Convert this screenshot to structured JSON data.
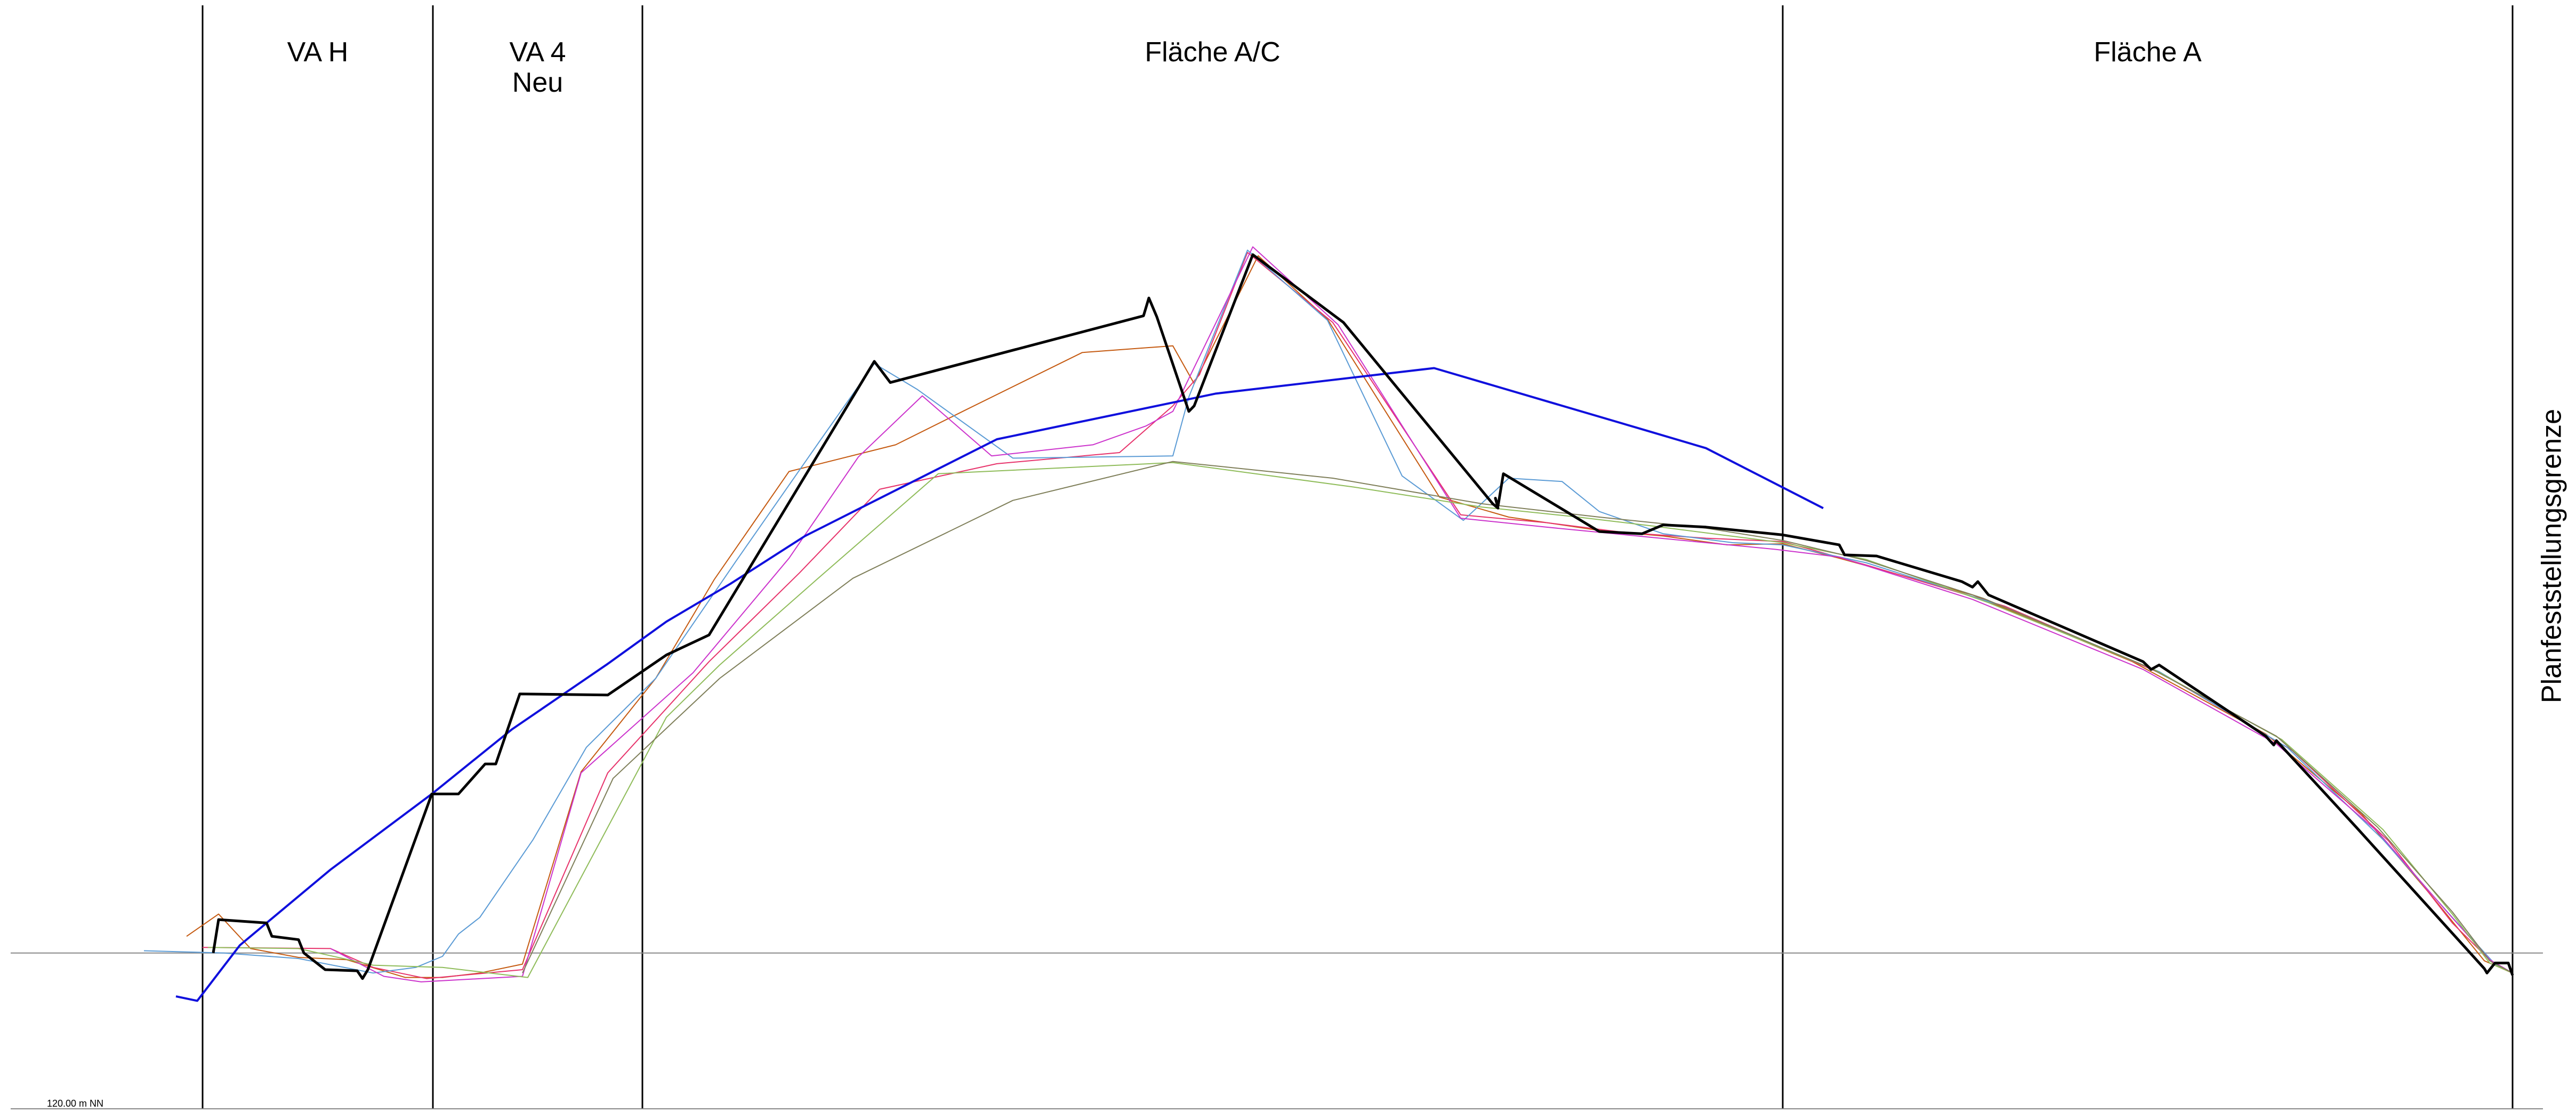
{
  "chart_data": {
    "type": "line",
    "grid": false,
    "xlim": [
      0,
      4832
    ],
    "ylim": [
      0,
      1
    ],
    "zones": [
      {
        "lines": [
          "VA H"
        ]
      },
      {
        "lines": [
          "VA 4",
          "Neu"
        ]
      },
      {
        "lines": [
          "Fläche A/C"
        ]
      },
      {
        "lines": [
          "Fläche A"
        ]
      }
    ],
    "side_label": "Planfeststellungsgrenze",
    "axis_label": "120.00 m NN",
    "reference_level": 0.143,
    "boundaries_x": [
      380,
      812,
      1205,
      3344,
      4713
    ],
    "series": [
      {
        "color": "#c55a11",
        "points": [
          [
            350,
            0.158
          ],
          [
            410,
            0.178
          ],
          [
            470,
            0.147
          ],
          [
            560,
            0.139
          ],
          [
            650,
            0.137
          ],
          [
            760,
            0.121
          ],
          [
            830,
            0.121
          ],
          [
            900,
            0.125
          ],
          [
            980,
            0.133
          ],
          [
            1090,
            0.306
          ],
          [
            1230,
            0.39
          ],
          [
            1340,
            0.479
          ],
          [
            1480,
            0.576
          ],
          [
            1680,
            0.6
          ],
          [
            1810,
            0.631
          ],
          [
            2030,
            0.683
          ],
          [
            2200,
            0.689
          ],
          [
            2240,
            0.655
          ],
          [
            2360,
            0.77
          ],
          [
            2490,
            0.713
          ],
          [
            2700,
            0.553
          ],
          [
            2830,
            0.535
          ],
          [
            3000,
            0.523
          ],
          [
            3120,
            0.518
          ],
          [
            3240,
            0.51
          ],
          [
            3344,
            0.511
          ],
          [
            3450,
            0.498
          ],
          [
            3700,
            0.465
          ],
          [
            4000,
            0.405
          ],
          [
            4250,
            0.34
          ],
          [
            4430,
            0.268
          ],
          [
            4560,
            0.195
          ],
          [
            4660,
            0.136
          ],
          [
            4713,
            0.125
          ]
        ]
      },
      {
        "color": "#e7336b",
        "points": [
          [
            380,
            0.148
          ],
          [
            620,
            0.147
          ],
          [
            700,
            0.13
          ],
          [
            800,
            0.12
          ],
          [
            980,
            0.128
          ],
          [
            1140,
            0.305
          ],
          [
            1330,
            0.405
          ],
          [
            1500,
            0.485
          ],
          [
            1650,
            0.56
          ],
          [
            1870,
            0.583
          ],
          [
            2100,
            0.593
          ],
          [
            2200,
            0.635
          ],
          [
            2250,
            0.663
          ],
          [
            2340,
            0.773
          ],
          [
            2500,
            0.71
          ],
          [
            2740,
            0.537
          ],
          [
            2900,
            0.53
          ],
          [
            3050,
            0.521
          ],
          [
            3200,
            0.516
          ],
          [
            3344,
            0.513
          ],
          [
            3500,
            0.492
          ],
          [
            3760,
            0.455
          ],
          [
            4060,
            0.393
          ],
          [
            4300,
            0.325
          ],
          [
            4480,
            0.244
          ],
          [
            4600,
            0.17
          ],
          [
            4680,
            0.132
          ],
          [
            4713,
            0.125
          ]
        ]
      },
      {
        "color": "#5b9bd5",
        "points": [
          [
            270,
            0.145
          ],
          [
            420,
            0.143
          ],
          [
            560,
            0.138
          ],
          [
            700,
            0.125
          ],
          [
            780,
            0.13
          ],
          [
            830,
            0.14
          ],
          [
            860,
            0.16
          ],
          [
            900,
            0.175
          ],
          [
            1000,
            0.245
          ],
          [
            1100,
            0.328
          ],
          [
            1230,
            0.39
          ],
          [
            1380,
            0.495
          ],
          [
            1540,
            0.605
          ],
          [
            1640,
            0.673
          ],
          [
            1720,
            0.65
          ],
          [
            1900,
            0.588
          ],
          [
            2200,
            0.59
          ],
          [
            2230,
            0.643
          ],
          [
            2340,
            0.775
          ],
          [
            2490,
            0.712
          ],
          [
            2630,
            0.572
          ],
          [
            2745,
            0.532
          ],
          [
            2830,
            0.57
          ],
          [
            2930,
            0.567
          ],
          [
            3000,
            0.54
          ],
          [
            3120,
            0.52
          ],
          [
            3250,
            0.512
          ],
          [
            3344,
            0.51
          ],
          [
            3500,
            0.494
          ],
          [
            3750,
            0.456
          ],
          [
            4050,
            0.396
          ],
          [
            4290,
            0.328
          ],
          [
            4470,
            0.245
          ],
          [
            4600,
            0.175
          ],
          [
            4680,
            0.133
          ],
          [
            4713,
            0.125
          ]
        ]
      },
      {
        "color": "#cc33cc",
        "points": [
          [
            620,
            0.147
          ],
          [
            720,
            0.122
          ],
          [
            790,
            0.117
          ],
          [
            980,
            0.122
          ],
          [
            1090,
            0.305
          ],
          [
            1300,
            0.395
          ],
          [
            1480,
            0.498
          ],
          [
            1610,
            0.589
          ],
          [
            1730,
            0.644
          ],
          [
            1860,
            0.59
          ],
          [
            2050,
            0.6
          ],
          [
            2150,
            0.617
          ],
          [
            2200,
            0.63
          ],
          [
            2350,
            0.778
          ],
          [
            2510,
            0.708
          ],
          [
            2740,
            0.534
          ],
          [
            2900,
            0.526
          ],
          [
            3050,
            0.519
          ],
          [
            3200,
            0.512
          ],
          [
            3330,
            0.506
          ],
          [
            3450,
            0.499
          ],
          [
            3700,
            0.461
          ],
          [
            4020,
            0.398
          ],
          [
            4270,
            0.331
          ],
          [
            4460,
            0.252
          ],
          [
            4590,
            0.18
          ],
          [
            4670,
            0.137
          ],
          [
            4713,
            0.125
          ]
        ]
      },
      {
        "color": "#8fbc5a",
        "points": [
          [
            390,
            0.148
          ],
          [
            560,
            0.147
          ],
          [
            700,
            0.132
          ],
          [
            830,
            0.13
          ],
          [
            990,
            0.121
          ],
          [
            1250,
            0.355
          ],
          [
            1350,
            0.402
          ],
          [
            1530,
            0.478
          ],
          [
            1760,
            0.574
          ],
          [
            2200,
            0.584
          ],
          [
            2540,
            0.562
          ],
          [
            2780,
            0.544
          ],
          [
            2960,
            0.535
          ],
          [
            3100,
            0.527
          ],
          [
            3344,
            0.512
          ],
          [
            3500,
            0.497
          ],
          [
            3730,
            0.458
          ],
          [
            4040,
            0.398
          ],
          [
            4280,
            0.335
          ],
          [
            4470,
            0.254
          ],
          [
            4600,
            0.178
          ],
          [
            4670,
            0.134
          ],
          [
            4713,
            0.125
          ]
        ]
      },
      {
        "color": "#7f7f5a",
        "points": [
          [
            980,
            0.125
          ],
          [
            1150,
            0.3
          ],
          [
            1350,
            0.39
          ],
          [
            1600,
            0.48
          ],
          [
            1900,
            0.55
          ],
          [
            2200,
            0.585
          ],
          [
            2500,
            0.57
          ],
          [
            2780,
            0.547
          ],
          [
            3000,
            0.535
          ],
          [
            3200,
            0.525
          ],
          [
            3344,
            0.514
          ],
          [
            3500,
            0.496
          ],
          [
            3720,
            0.462
          ],
          [
            4030,
            0.4
          ],
          [
            4270,
            0.338
          ],
          [
            4460,
            0.256
          ],
          [
            4600,
            0.18
          ],
          [
            4670,
            0.136
          ],
          [
            4713,
            0.125
          ]
        ]
      },
      {
        "color": "#1010dd",
        "width": 4,
        "points": [
          [
            330,
            0.104
          ],
          [
            370,
            0.1
          ],
          [
            450,
            0.15
          ],
          [
            620,
            0.218
          ],
          [
            810,
            0.286
          ],
          [
            960,
            0.344
          ],
          [
            1140,
            0.403
          ],
          [
            1250,
            0.441
          ],
          [
            1370,
            0.475
          ],
          [
            1510,
            0.518
          ],
          [
            1870,
            0.605
          ],
          [
            2280,
            0.646
          ],
          [
            2690,
            0.669
          ],
          [
            3080,
            0.614
          ],
          [
            3200,
            0.597
          ],
          [
            3420,
            0.543
          ]
        ]
      },
      {
        "color": "#000000",
        "width": 5,
        "points": [
          [
            400,
            0.143
          ],
          [
            410,
            0.173
          ],
          [
            500,
            0.17
          ],
          [
            510,
            0.158
          ],
          [
            560,
            0.155
          ],
          [
            570,
            0.143
          ],
          [
            610,
            0.128
          ],
          [
            670,
            0.127
          ],
          [
            680,
            0.12
          ],
          [
            690,
            0.128
          ],
          [
            810,
            0.286
          ],
          [
            860,
            0.286
          ],
          [
            910,
            0.313
          ],
          [
            930,
            0.313
          ],
          [
            975,
            0.376
          ],
          [
            1140,
            0.375
          ],
          [
            1250,
            0.411
          ],
          [
            1330,
            0.429
          ],
          [
            1640,
            0.675
          ],
          [
            1670,
            0.656
          ],
          [
            2145,
            0.716
          ],
          [
            2155,
            0.732
          ],
          [
            2170,
            0.715
          ],
          [
            2230,
            0.63
          ],
          [
            2240,
            0.635
          ],
          [
            2350,
            0.771
          ],
          [
            2520,
            0.71
          ],
          [
            2800,
            0.547
          ],
          [
            2810,
            0.543
          ],
          [
            2805,
            0.552
          ],
          [
            2810,
            0.545
          ],
          [
            2820,
            0.574
          ],
          [
            3000,
            0.522
          ],
          [
            3080,
            0.52
          ],
          [
            3120,
            0.528
          ],
          [
            3200,
            0.526
          ],
          [
            3344,
            0.519
          ],
          [
            3450,
            0.51
          ],
          [
            3460,
            0.501
          ],
          [
            3520,
            0.5
          ],
          [
            3680,
            0.477
          ],
          [
            3700,
            0.472
          ],
          [
            3710,
            0.477
          ],
          [
            3730,
            0.465
          ],
          [
            4020,
            0.405
          ],
          [
            4035,
            0.398
          ],
          [
            4050,
            0.402
          ],
          [
            4250,
            0.338
          ],
          [
            4265,
            0.33
          ],
          [
            4270,
            0.334
          ],
          [
            4420,
            0.256
          ],
          [
            4660,
            0.129
          ],
          [
            4665,
            0.125
          ],
          [
            4680,
            0.134
          ],
          [
            4705,
            0.134
          ],
          [
            4713,
            0.123
          ]
        ]
      }
    ]
  }
}
